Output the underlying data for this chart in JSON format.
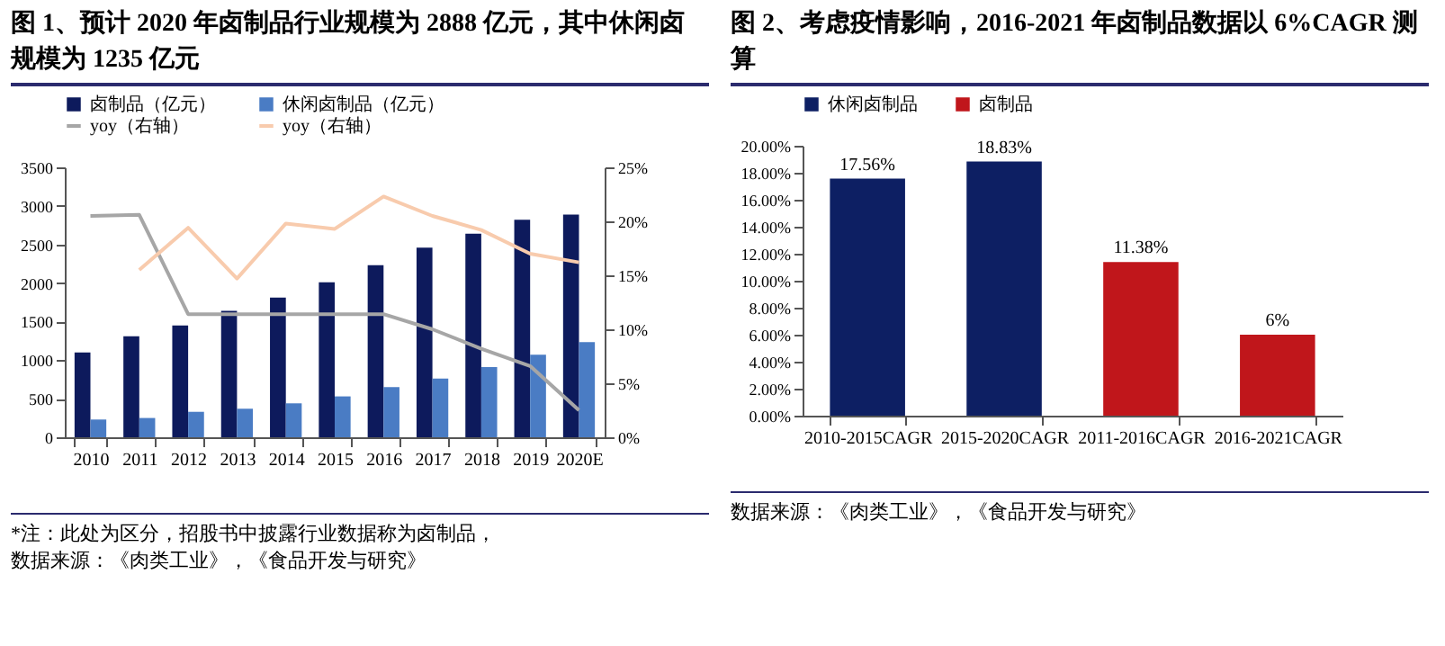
{
  "chart_data": [
    {
      "type": "bar",
      "title": "图 1、预计 2020 年卤制品行业规模为 2888 亿元，其中休闲卤规模为 1235 亿元",
      "categories": [
        "2010",
        "2011",
        "2012",
        "2013",
        "2014",
        "2015",
        "2016",
        "2017",
        "2018",
        "2019",
        "2020E"
      ],
      "series": [
        {
          "name": "卤制品（亿元）",
          "color": "#0d1a5c",
          "values": [
            1100,
            1310,
            1450,
            1640,
            1810,
            2010,
            2230,
            2460,
            2640,
            2820,
            2888
          ]
        },
        {
          "name": "休闲卤制品（亿元）",
          "color": "#4a7cc4",
          "values": [
            230,
            250,
            330,
            370,
            440,
            530,
            650,
            760,
            910,
            1070,
            1235
          ]
        },
        {
          "name": "yoy（右轴）",
          "type": "line",
          "axis": "y2",
          "color": "#a6a6a6",
          "values": [
            20.5,
            20.6,
            11.4,
            11.4,
            11.4,
            11.4,
            11.4,
            10.0,
            8.2,
            6.6,
            2.5
          ]
        },
        {
          "name": "yoy（右轴）",
          "type": "line",
          "axis": "y2",
          "color": "#f8cbad",
          "values": [
            null,
            15.5,
            19.4,
            14.7,
            19.8,
            19.3,
            22.3,
            20.5,
            19.2,
            17.0,
            16.2
          ]
        }
      ],
      "ylim": [
        0,
        3500
      ],
      "yticks": [
        0,
        500,
        1000,
        1500,
        2000,
        2500,
        3000,
        3500
      ],
      "y2lim": [
        0,
        25
      ],
      "y2ticks": [
        {
          "value": 0,
          "label": "0%"
        },
        {
          "value": 5,
          "label": "5%"
        },
        {
          "value": 10,
          "label": "10%"
        },
        {
          "value": 15,
          "label": "15%"
        },
        {
          "value": 20,
          "label": "20%"
        },
        {
          "value": 25,
          "label": "25%"
        }
      ],
      "legend": "top",
      "annotations": [
        "*注：此处为区分，招股书中披露行业数据称为卤制品，",
        "数据来源：《肉类工业》，《食品开发与研究》"
      ]
    },
    {
      "type": "bar",
      "title": "图 2、考虑疫情影响，2016-2021 年卤制品数据以 6%CAGR 测算",
      "categories": [
        "2010-2015CAGR",
        "2015-2020CAGR",
        "2011-2016CAGR",
        "2016-2021CAGR"
      ],
      "series": [
        {
          "name": "休闲卤制品",
          "color": "#0d1f63",
          "values": [
            17.56,
            18.83,
            null,
            null
          ],
          "value_labels": [
            "17.56%",
            "18.83%",
            null,
            null
          ]
        },
        {
          "name": "卤制品",
          "color": "#c0161b",
          "values": [
            null,
            null,
            11.38,
            6
          ],
          "value_labels": [
            null,
            null,
            "11.38%",
            "6%"
          ]
        }
      ],
      "ylim": [
        0,
        20
      ],
      "yticks": [
        {
          "value": 0,
          "label": "0.00%"
        },
        {
          "value": 2,
          "label": "2.00%"
        },
        {
          "value": 4,
          "label": "4.00%"
        },
        {
          "value": 6,
          "label": "6.00%"
        },
        {
          "value": 8,
          "label": "8.00%"
        },
        {
          "value": 10,
          "label": "10.00%"
        },
        {
          "value": 12,
          "label": "12.00%"
        },
        {
          "value": 14,
          "label": "14.00%"
        },
        {
          "value": 16,
          "label": "16.00%"
        },
        {
          "value": 18,
          "label": "18.00%"
        },
        {
          "value": 20,
          "label": "20.00%"
        }
      ],
      "legend": "top",
      "annotations": [
        "数据来源：《肉类工业》，《食品开发与研究》"
      ]
    }
  ]
}
